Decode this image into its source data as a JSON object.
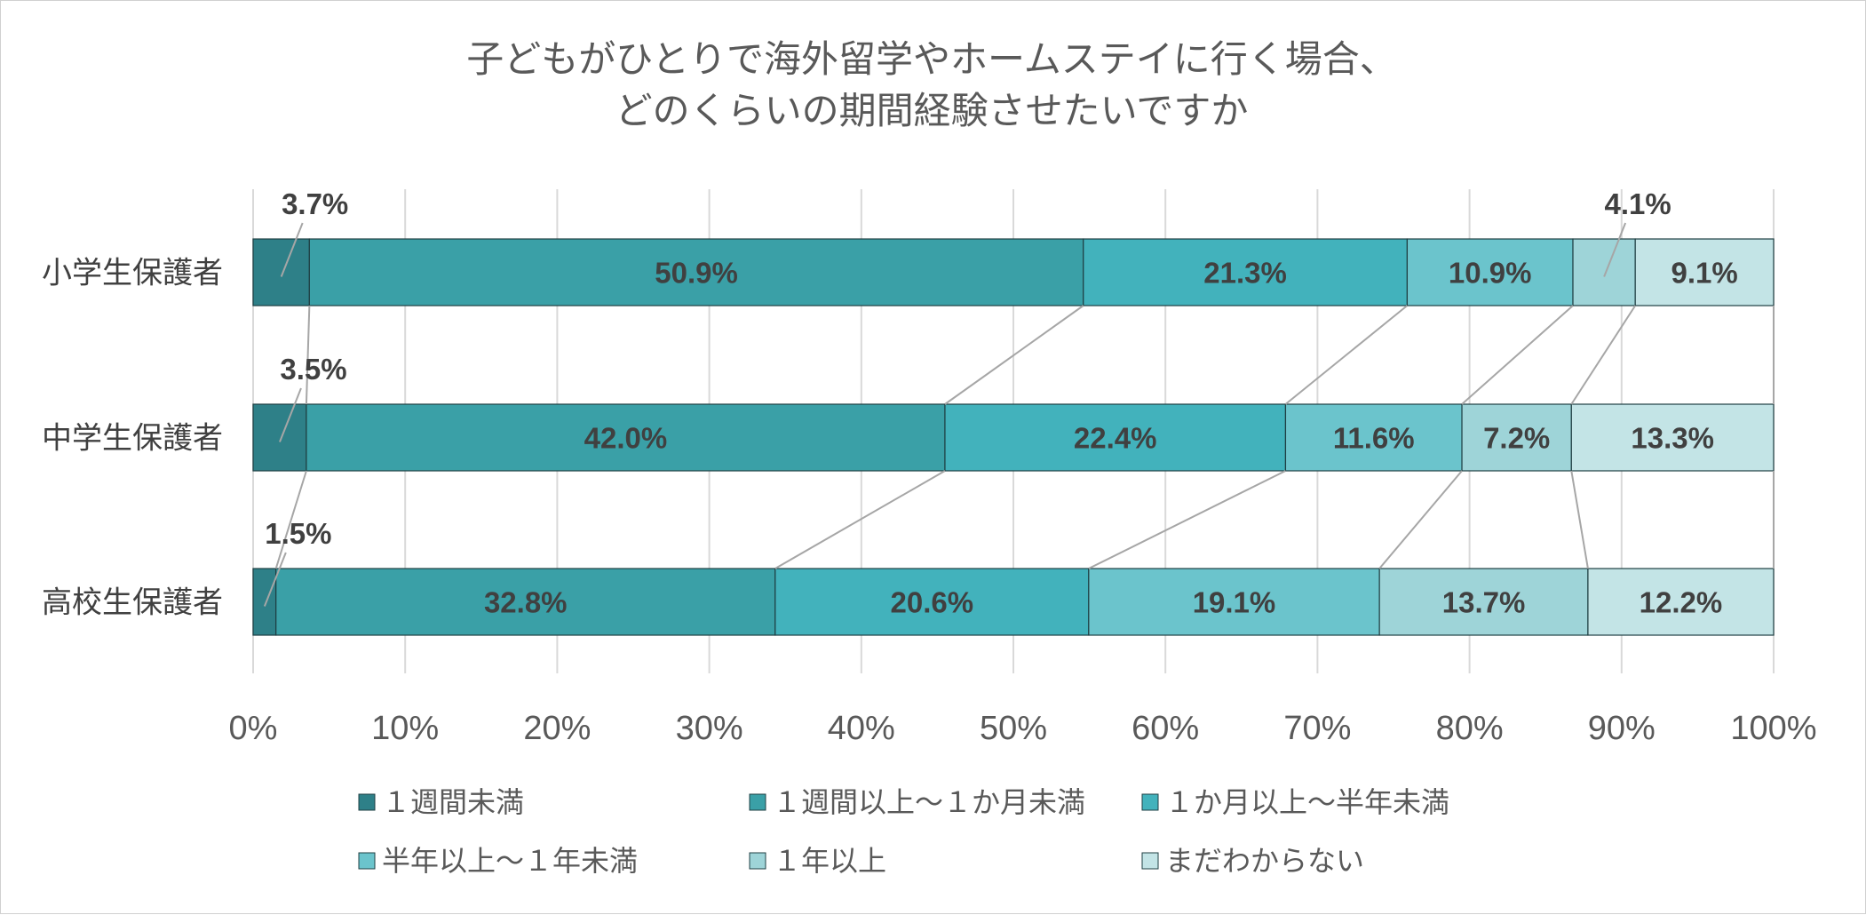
{
  "chart_data": {
    "type": "bar",
    "orientation": "horizontal",
    "stacked": "percent",
    "title_lines": [
      "子どもがひとりで海外留学やホームステイに行く場合、",
      "どのくらいの期間経験させたいですか"
    ],
    "categories": [
      "小学生保護者",
      "中学生保護者",
      "高校生保護者"
    ],
    "series": [
      {
        "name": "１週間未満",
        "color": "#2e8088",
        "values": [
          3.7,
          3.5,
          1.5
        ],
        "labels": [
          "3.7%",
          "3.5%",
          "1.5%"
        ]
      },
      {
        "name": "１週間以上～１か月未満",
        "color": "#3aa0a7",
        "values": [
          50.9,
          42.0,
          32.8
        ],
        "labels": [
          "50.9%",
          "42.0%",
          "32.8%"
        ]
      },
      {
        "name": "１か月以上～半年未満",
        "color": "#42b2bc",
        "values": [
          21.3,
          22.4,
          20.6
        ],
        "labels": [
          "21.3%",
          "22.4%",
          "20.6%"
        ]
      },
      {
        "name": "半年以上～１年未満",
        "color": "#6bc4cc",
        "values": [
          10.9,
          11.6,
          19.1
        ],
        "labels": [
          "10.9%",
          "11.6%",
          "19.1%"
        ]
      },
      {
        "name": "１年以上",
        "color": "#9ed4d8",
        "values": [
          4.1,
          7.2,
          13.7
        ],
        "labels": [
          "4.1%",
          "7.2%",
          "13.7%"
        ]
      },
      {
        "name": "まだわからない",
        "color": "#c3e4e6",
        "values": [
          9.1,
          13.3,
          12.2
        ],
        "labels": [
          "9.1%",
          "13.3%",
          "12.2%"
        ]
      }
    ],
    "x_ticks": [
      "0%",
      "10%",
      "20%",
      "30%",
      "40%",
      "50%",
      "60%",
      "70%",
      "80%",
      "90%",
      "100%"
    ],
    "xlim": [
      0,
      100
    ],
    "grid": "vertical",
    "series_lines": true,
    "legend_position": "bottom"
  }
}
